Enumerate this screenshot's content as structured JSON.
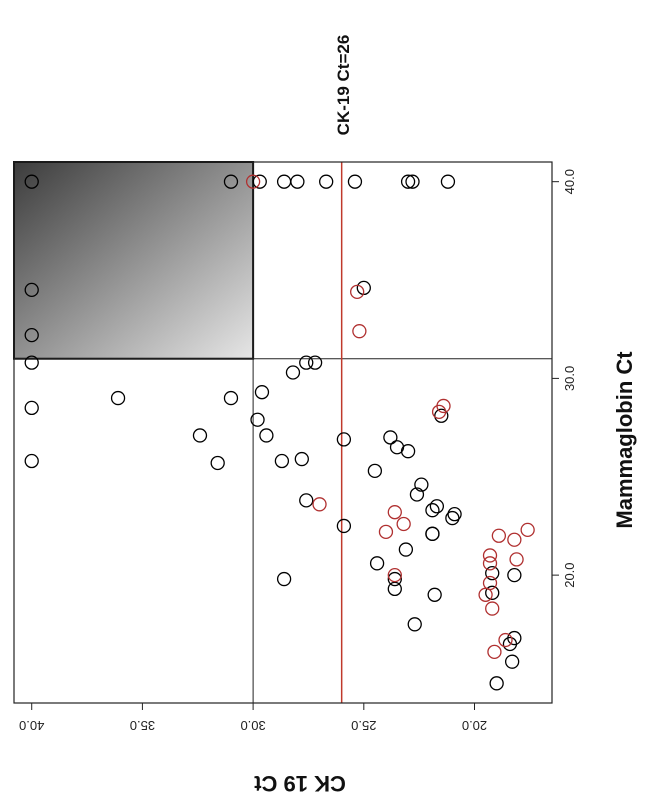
{
  "chart_data": {
    "type": "scatter",
    "title": "",
    "xlabel": "Mammaglobin Ct",
    "ylabel": "CK 19 Ct",
    "xlim": [
      13.5,
      41.0
    ],
    "ylim": [
      16.5,
      40.8
    ],
    "x_ticks": [
      "20.0",
      "30.0",
      "40.0"
    ],
    "y_ticks": [
      "20.0",
      "25.0",
      "30.0",
      "35.0",
      "40.0"
    ],
    "orientation": "rotated 90 degrees clockwise",
    "cutoffs": {
      "mammaglobin_ct": 31.0,
      "ck19_ct": 30.0
    },
    "threshold_line": {
      "ck19_ct": 26.0,
      "label": "CK-19 Ct=26",
      "color": "#c0392b"
    },
    "shaded_region": "Mammaglobin Ct >= 31.0 and CK 19 Ct >= 30.0",
    "grid": false,
    "legend": "none",
    "series": [
      {
        "color": "#000000",
        "points": [
          [
            40.0,
            40.0
          ],
          [
            34.5,
            40.0
          ],
          [
            32.2,
            40.0
          ],
          [
            30.8,
            40.0
          ],
          [
            28.5,
            40.0
          ],
          [
            25.8,
            40.0
          ],
          [
            40.0,
            31.0
          ],
          [
            29.0,
            36.1
          ],
          [
            27.1,
            32.4
          ],
          [
            25.7,
            31.6
          ],
          [
            29.0,
            31.0
          ],
          [
            40.0,
            29.7
          ],
          [
            40.0,
            28.6
          ],
          [
            40.0,
            28.0
          ],
          [
            40.0,
            26.7
          ],
          [
            40.0,
            25.4
          ],
          [
            40.0,
            23.0
          ],
          [
            40.0,
            22.8
          ],
          [
            40.0,
            21.2
          ],
          [
            34.6,
            25.0
          ],
          [
            30.8,
            27.6
          ],
          [
            30.8,
            27.2
          ],
          [
            30.3,
            28.2
          ],
          [
            29.3,
            29.6
          ],
          [
            27.9,
            29.8
          ],
          [
            27.1,
            29.4
          ],
          [
            25.8,
            28.7
          ],
          [
            25.9,
            27.8
          ],
          [
            23.8,
            27.6
          ],
          [
            22.5,
            25.9
          ],
          [
            26.9,
            25.9
          ],
          [
            25.3,
            24.5
          ],
          [
            24.6,
            22.4
          ],
          [
            24.1,
            22.6
          ],
          [
            23.5,
            21.7
          ],
          [
            23.1,
            20.9
          ],
          [
            22.9,
            21.0
          ],
          [
            22.1,
            21.9
          ],
          [
            21.3,
            23.1
          ],
          [
            20.6,
            24.4
          ],
          [
            19.8,
            28.6
          ],
          [
            19.3,
            23.6
          ],
          [
            19.8,
            23.6
          ],
          [
            19.0,
            21.8
          ],
          [
            20.1,
            19.2
          ],
          [
            19.1,
            19.2
          ],
          [
            20.0,
            18.2
          ],
          [
            17.5,
            22.7
          ],
          [
            16.8,
            18.2
          ],
          [
            16.5,
            18.4
          ],
          [
            15.6,
            18.3
          ],
          [
            14.5,
            19.0
          ],
          [
            26.3,
            23.0
          ],
          [
            26.5,
            23.5
          ],
          [
            28.1,
            21.5
          ],
          [
            27.0,
            23.8
          ],
          [
            23.3,
            21.9
          ],
          [
            22.1,
            21.9
          ]
        ]
      },
      {
        "color": "#b03030",
        "points": [
          [
            40.0,
            30.0
          ],
          [
            34.4,
            25.3
          ],
          [
            32.4,
            25.2
          ],
          [
            28.6,
            21.4
          ],
          [
            28.3,
            21.6
          ],
          [
            23.6,
            27.0
          ],
          [
            23.2,
            23.6
          ],
          [
            22.6,
            23.2
          ],
          [
            22.2,
            24.0
          ],
          [
            22.3,
            17.6
          ],
          [
            21.8,
            18.2
          ],
          [
            20.8,
            18.1
          ],
          [
            21.0,
            19.3
          ],
          [
            20.6,
            19.3
          ],
          [
            19.6,
            19.3
          ],
          [
            19.0,
            19.5
          ],
          [
            18.3,
            19.2
          ],
          [
            20.0,
            23.6
          ],
          [
            16.7,
            18.6
          ],
          [
            16.1,
            19.1
          ],
          [
            22.0,
            18.9
          ]
        ]
      }
    ]
  }
}
